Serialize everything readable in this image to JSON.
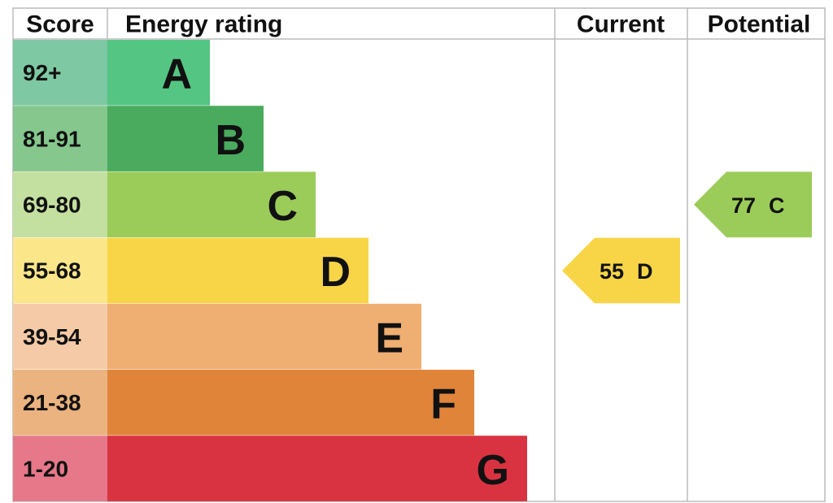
{
  "header": {
    "score": "Score",
    "rating": "Energy rating",
    "current": "Current",
    "potential": "Potential"
  },
  "bands": [
    {
      "score": "92+",
      "letter": "A"
    },
    {
      "score": "81-91",
      "letter": "B"
    },
    {
      "score": "69-80",
      "letter": "C"
    },
    {
      "score": "55-68",
      "letter": "D"
    },
    {
      "score": "39-54",
      "letter": "E"
    },
    {
      "score": "21-38",
      "letter": "F"
    },
    {
      "score": "1-20",
      "letter": "G"
    }
  ],
  "current": {
    "score": 55,
    "band": "D"
  },
  "potential": {
    "score": 77,
    "band": "C"
  }
}
